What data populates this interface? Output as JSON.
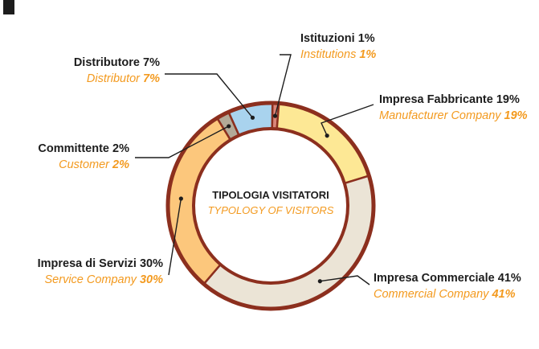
{
  "chart_data": {
    "type": "pie",
    "title": "TIPOLOGIA VISITATORI",
    "subtitle": "TYPOLOGY OF VISITORS",
    "slices": [
      {
        "label_it": "Istituzioni",
        "label_en": "Institutions",
        "value": 1,
        "pct_text": "1%",
        "color": "#d9867a"
      },
      {
        "label_it": "Impresa Fabbricante",
        "label_en": "Manufacturer Company",
        "value": 19,
        "pct_text": "19%",
        "color": "#fde895"
      },
      {
        "label_it": "Impresa Commerciale",
        "label_en": "Commercial Company",
        "value": 41,
        "pct_text": "41%",
        "color": "#ebe4d6"
      },
      {
        "label_it": "Impresa di Servizi",
        "label_en": "Service Company",
        "value": 30,
        "pct_text": "30%",
        "color": "#fcc77c"
      },
      {
        "label_it": "Committente",
        "label_en": "Customer",
        "value": 2,
        "pct_text": "2%",
        "color": "#b3aa98"
      },
      {
        "label_it": "Distributore",
        "label_en": "Distributor",
        "value": 7,
        "pct_text": "7%",
        "color": "#a9d3ee"
      }
    ]
  },
  "colors": {
    "ring_border": "#8c2f1e",
    "label_text": "#1d1d1d",
    "label_english": "#f39a1f",
    "leader_line": "#1d1d1d"
  }
}
